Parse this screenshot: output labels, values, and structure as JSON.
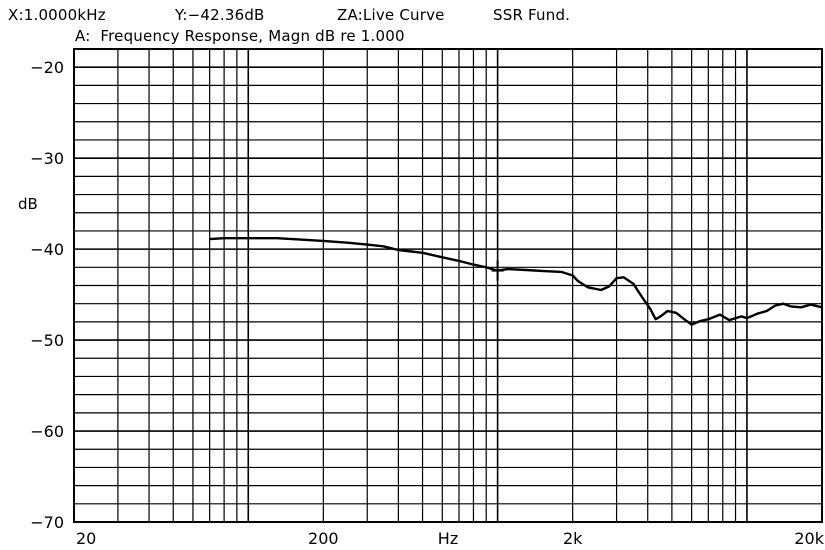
{
  "header": {
    "x_readout": "X:1.0000kHz",
    "y_readout": "Y:−42.36dB",
    "za_readout": "ZA:Live Curve",
    "ssr_label": "SSR Fund.",
    "subtitle": "A:  Frequency Response, Magn dB re 1.000"
  },
  "chart_data": {
    "type": "line",
    "title": "A:  Frequency Response, Magn dB re 1.000",
    "xlabel": "Hz",
    "ylabel": "dB",
    "xscale": "log",
    "xlim": [
      20,
      20000
    ],
    "ylim": [
      -70,
      -18
    ],
    "grid": true,
    "x_ticks": [
      {
        "value": 20,
        "label": "20"
      },
      {
        "value": 200,
        "label": "200"
      },
      {
        "value": 2000,
        "label": "2k"
      },
      {
        "value": 20000,
        "label": "20k"
      }
    ],
    "y_ticks": [
      {
        "value": -20,
        "label": "−20"
      },
      {
        "value": -30,
        "label": "−30"
      },
      {
        "value": -40,
        "label": "−40"
      },
      {
        "value": -50,
        "label": "−50"
      },
      {
        "value": -60,
        "label": "−60"
      },
      {
        "value": -70,
        "label": "−70"
      }
    ],
    "cursor": {
      "x": 1000,
      "y": -42.36
    },
    "series": [
      {
        "color": "#000000",
        "points": [
          [
            70,
            -38.9
          ],
          [
            80,
            -38.8
          ],
          [
            100,
            -38.8
          ],
          [
            130,
            -38.8
          ],
          [
            150,
            -38.9
          ],
          [
            200,
            -39.1
          ],
          [
            250,
            -39.3
          ],
          [
            300,
            -39.5
          ],
          [
            350,
            -39.7
          ],
          [
            400,
            -40.1
          ],
          [
            500,
            -40.4
          ],
          [
            600,
            -40.9
          ],
          [
            700,
            -41.3
          ],
          [
            800,
            -41.7
          ],
          [
            900,
            -42.0
          ],
          [
            1000,
            -42.36
          ],
          [
            1100,
            -42.2
          ],
          [
            1300,
            -42.3
          ],
          [
            1500,
            -42.4
          ],
          [
            1800,
            -42.5
          ],
          [
            2000,
            -42.9
          ],
          [
            2100,
            -43.5
          ],
          [
            2300,
            -44.2
          ],
          [
            2600,
            -44.5
          ],
          [
            2800,
            -44.1
          ],
          [
            3000,
            -43.2
          ],
          [
            3200,
            -43.1
          ],
          [
            3500,
            -43.8
          ],
          [
            3800,
            -45.3
          ],
          [
            4100,
            -46.6
          ],
          [
            4300,
            -47.7
          ],
          [
            4500,
            -47.4
          ],
          [
            4800,
            -46.8
          ],
          [
            5200,
            -47.0
          ],
          [
            5600,
            -47.7
          ],
          [
            6000,
            -48.3
          ],
          [
            6500,
            -47.9
          ],
          [
            7000,
            -47.7
          ],
          [
            7800,
            -47.2
          ],
          [
            8500,
            -47.8
          ],
          [
            9000,
            -47.6
          ],
          [
            9500,
            -47.4
          ],
          [
            10000,
            -47.6
          ],
          [
            11000,
            -47.1
          ],
          [
            12000,
            -46.8
          ],
          [
            13000,
            -46.2
          ],
          [
            14000,
            -46.0
          ],
          [
            15000,
            -46.3
          ],
          [
            16500,
            -46.4
          ],
          [
            18000,
            -46.1
          ],
          [
            20000,
            -46.4
          ]
        ]
      }
    ]
  }
}
